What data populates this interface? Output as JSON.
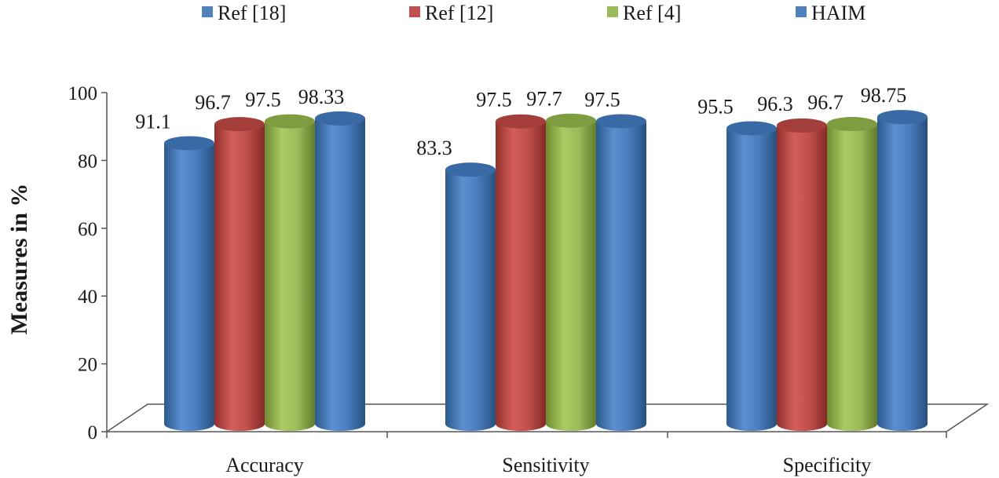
{
  "chart_data": {
    "type": "bar",
    "style": "3d-cylinder",
    "categories": [
      "Accuracy",
      "Sensitivity",
      "Specificity"
    ],
    "series": [
      {
        "name": "Ref [18]",
        "values": [
          91.1,
          83.3,
          95.5
        ],
        "color": "#4f81bd"
      },
      {
        "name": "Ref [12]",
        "values": [
          96.7,
          97.5,
          96.3
        ],
        "color": "#c0504d"
      },
      {
        "name": "Ref [4]",
        "values": [
          97.5,
          97.7,
          96.7
        ],
        "color": "#9bbb59"
      },
      {
        "name": "HAIM",
        "values": [
          98.33,
          97.5,
          98.75
        ],
        "color": "#4f81bd"
      }
    ],
    "data_labels": [
      [
        "91.1",
        "83.3",
        "95.5"
      ],
      [
        "96.7",
        "97.5",
        "96.3"
      ],
      [
        "97.5",
        "97.7",
        "96.7"
      ],
      [
        "98.33",
        "97.5",
        "98.75"
      ]
    ],
    "ylabel": "Measures in %",
    "yticks": [
      "0",
      "20",
      "40",
      "60",
      "80",
      "100"
    ],
    "ylim": [
      0,
      100
    ],
    "legend_position": "top",
    "grid": false
  }
}
